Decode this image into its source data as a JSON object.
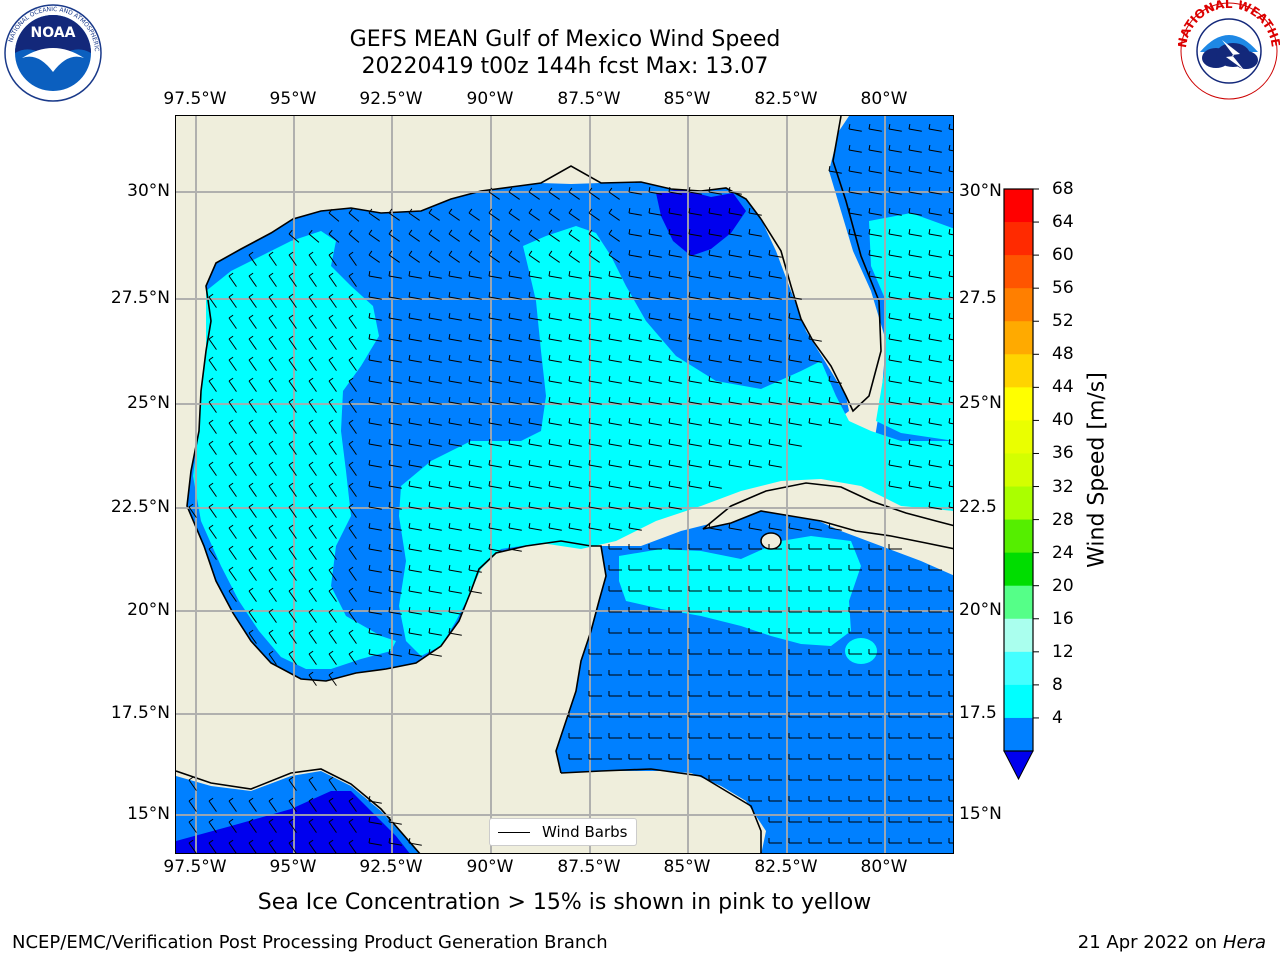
{
  "title_line1": "GEFS MEAN Gulf of Mexico Wind Speed",
  "title_line2": "20220419 t00z 144h fcst   Max: 13.07",
  "lon_labels": [
    "97.5°W",
    "95°W",
    "92.5°W",
    "90°W",
    "87.5°W",
    "85°W",
    "82.5°W",
    "80°W"
  ],
  "lat_labels_left": [
    "30°N",
    "27.5°N",
    "25°N",
    "22.5°N",
    "20°N",
    "17.5°N",
    "15°N"
  ],
  "lat_labels_right": [
    "30°N",
    "27.5",
    "25°N",
    "22.5",
    "20°N",
    "17.5",
    "15°N"
  ],
  "colorbar": {
    "label": "Wind Speed [m/s]",
    "ticks": [
      "68",
      "64",
      "60",
      "56",
      "52",
      "48",
      "44",
      "40",
      "36",
      "32",
      "28",
      "24",
      "20",
      "16",
      "12",
      "8",
      "4"
    ],
    "colors": [
      "#ff0000",
      "#ff2a00",
      "#ff5500",
      "#ff7f00",
      "#ffaa00",
      "#ffd400",
      "#ffff00",
      "#eaff00",
      "#d4ff00",
      "#aaff00",
      "#55ee00",
      "#00dd00",
      "#55ff88",
      "#aaffee",
      "#44ffff",
      "#00ffff",
      "#0080ff"
    ],
    "extend_color": "#0000ee"
  },
  "legend_label": "Wind Barbs",
  "ice_note": "Sea Ice Concentration > 15% is shown in pink to yellow",
  "footer_left": "NCEP/EMC/Verification Post Processing Product Generation Branch",
  "footer_date": "21 Apr 2022 on",
  "footer_machine": "Hera",
  "logos": {
    "left": "NOAA",
    "right": "NATIONAL WEATHER SERVICE"
  },
  "map_colors": {
    "land": "#efeedc",
    "ocean_4_8": "#0080ff",
    "ocean_8_12": "#00ffff",
    "ocean_lt4": "#0000ee"
  }
}
